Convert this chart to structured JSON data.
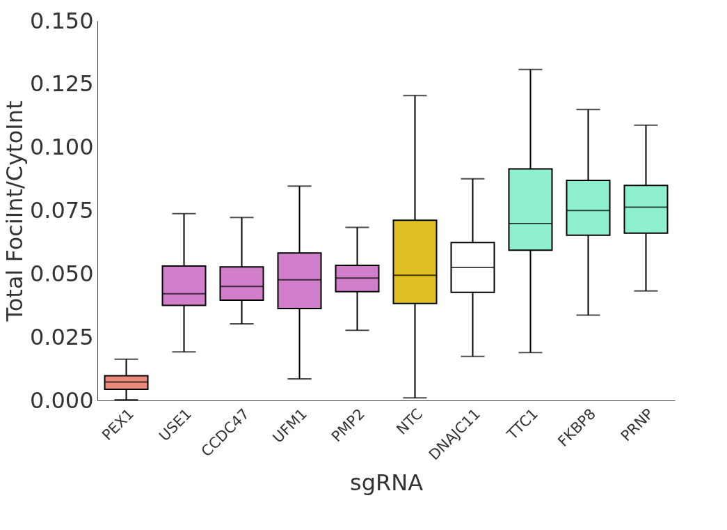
{
  "chart_data": {
    "type": "box",
    "xlabel": "sgRNA",
    "ylabel": "Total FociInt/CytoInt",
    "categories": [
      "PEX1",
      "USE1",
      "CCDC47",
      "UFM1",
      "PMP2",
      "NTC",
      "DNAJC11",
      "TTC1",
      "FKBP8",
      "PRNP"
    ],
    "colors": [
      "#e8897a",
      "#d17fcb",
      "#d17fcb",
      "#d17fcb",
      "#d17fcb",
      "#e0c024",
      "#ffffff",
      "#8ff0d0",
      "#8ff0d0",
      "#8ff0d0"
    ],
    "boxes": [
      {
        "low": 0.0003,
        "q1": 0.0044,
        "median": 0.0073,
        "q3": 0.0098,
        "high": 0.0163
      },
      {
        "low": 0.0192,
        "q1": 0.0376,
        "median": 0.0422,
        "q3": 0.0531,
        "high": 0.0738
      },
      {
        "low": 0.0303,
        "q1": 0.0396,
        "median": 0.0451,
        "q3": 0.0528,
        "high": 0.0723
      },
      {
        "low": 0.0085,
        "q1": 0.0363,
        "median": 0.0477,
        "q3": 0.0583,
        "high": 0.0847
      },
      {
        "low": 0.0277,
        "q1": 0.043,
        "median": 0.0484,
        "q3": 0.0534,
        "high": 0.0684
      },
      {
        "low": 0.001,
        "q1": 0.0383,
        "median": 0.0495,
        "q3": 0.0712,
        "high": 0.1205
      },
      {
        "low": 0.0174,
        "q1": 0.0427,
        "median": 0.0526,
        "q3": 0.0624,
        "high": 0.0876
      },
      {
        "low": 0.0189,
        "q1": 0.0594,
        "median": 0.0699,
        "q3": 0.0915,
        "high": 0.1308
      },
      {
        "low": 0.0337,
        "q1": 0.0653,
        "median": 0.0751,
        "q3": 0.087,
        "high": 0.115
      },
      {
        "low": 0.0433,
        "q1": 0.0661,
        "median": 0.0764,
        "q3": 0.085,
        "high": 0.1088
      }
    ],
    "ylim": [
      0,
      0.15
    ],
    "yticks": [
      {
        "value": 0,
        "label": "0.000"
      },
      {
        "value": 0.025,
        "label": "0.025"
      },
      {
        "value": 0.05,
        "label": "0.050"
      },
      {
        "value": 0.075,
        "label": "0.075"
      },
      {
        "value": 0.1,
        "label": "0.100"
      },
      {
        "value": 0.125,
        "label": "0.125"
      },
      {
        "value": 0.15,
        "label": "0.150"
      }
    ],
    "grid": false
  }
}
